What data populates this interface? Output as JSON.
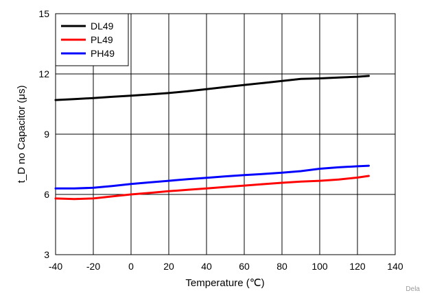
{
  "chart_data": {
    "type": "line",
    "title": "",
    "xlabel": "Temperature (℃)",
    "ylabel": "t_D no Capacitor (μs)",
    "xlim": [
      -40,
      140
    ],
    "ylim": [
      3,
      15
    ],
    "xticks": [
      "-40",
      "-20",
      "0",
      "20",
      "40",
      "60",
      "80",
      "100",
      "120",
      "140"
    ],
    "yticks": [
      "3",
      "6",
      "9",
      "12",
      "15"
    ],
    "grid": true,
    "legend_position": "top-left",
    "series": [
      {
        "name": "DL49",
        "color": "#000000",
        "x": [
          -40,
          -30,
          -20,
          -10,
          0,
          10,
          20,
          30,
          40,
          50,
          60,
          70,
          80,
          90,
          100,
          110,
          120,
          126
        ],
        "y": [
          10.7,
          10.75,
          10.8,
          10.86,
          10.92,
          10.98,
          11.05,
          11.14,
          11.24,
          11.35,
          11.45,
          11.55,
          11.65,
          11.75,
          11.78,
          11.82,
          11.86,
          11.9
        ]
      },
      {
        "name": "PL49",
        "color": "#ff0000",
        "x": [
          -40,
          -30,
          -20,
          -10,
          0,
          10,
          20,
          30,
          40,
          50,
          60,
          70,
          80,
          90,
          100,
          110,
          120,
          126
        ],
        "y": [
          5.8,
          5.77,
          5.8,
          5.9,
          6.0,
          6.08,
          6.16,
          6.23,
          6.3,
          6.37,
          6.44,
          6.51,
          6.58,
          6.64,
          6.68,
          6.74,
          6.84,
          6.92
        ]
      },
      {
        "name": "PH49",
        "color": "#0000ff",
        "x": [
          -40,
          -30,
          -20,
          -10,
          0,
          10,
          20,
          30,
          40,
          50,
          60,
          70,
          80,
          90,
          100,
          110,
          120,
          126
        ],
        "y": [
          6.3,
          6.3,
          6.33,
          6.42,
          6.52,
          6.6,
          6.68,
          6.76,
          6.83,
          6.9,
          6.96,
          7.02,
          7.08,
          7.16,
          7.28,
          7.35,
          7.4,
          7.43
        ]
      }
    ]
  },
  "watermark": "Dela"
}
